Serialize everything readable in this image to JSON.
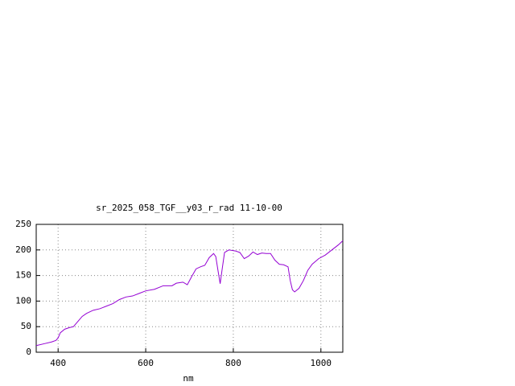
{
  "chart_data": {
    "type": "line",
    "title": "sr_2025_058_TGF__y03_r_rad 11-10-00",
    "x_label": "nm",
    "x": [
      350,
      370,
      385,
      395,
      400,
      405,
      415,
      425,
      435,
      445,
      455,
      465,
      480,
      495,
      510,
      525,
      540,
      555,
      570,
      585,
      600,
      620,
      640,
      660,
      670,
      685,
      695,
      705,
      715,
      725,
      735,
      745,
      755,
      760,
      765,
      770,
      775,
      780,
      790,
      805,
      815,
      825,
      835,
      845,
      855,
      865,
      875,
      885,
      895,
      905,
      915,
      925,
      930,
      935,
      940,
      950,
      960,
      970,
      980,
      995,
      1010,
      1025,
      1040,
      1050
    ],
    "series": [
      {
        "name": "sr_2025_058_TGF__y03_r_rad",
        "color": "#9400d3",
        "values": [
          13,
          17,
          20,
          23,
          28,
          38,
          45,
          48,
          50,
          60,
          70,
          76,
          82,
          85,
          90,
          95,
          103,
          108,
          110,
          115,
          120,
          123,
          130,
          130,
          135,
          137,
          132,
          148,
          163,
          167,
          170,
          185,
          193,
          187,
          160,
          134,
          165,
          195,
          200,
          198,
          195,
          183,
          188,
          196,
          191,
          194,
          193,
          193,
          180,
          172,
          171,
          167,
          140,
          122,
          118,
          125,
          140,
          160,
          172,
          183,
          190,
          200,
          210,
          218
        ]
      }
    ],
    "xlim": [
      350,
      1050
    ],
    "xticks": [
      400,
      600,
      800,
      1000
    ],
    "ylim": [
      0,
      250
    ],
    "yticks": [
      0,
      50,
      100,
      150,
      200,
      250
    ],
    "grid": true
  }
}
